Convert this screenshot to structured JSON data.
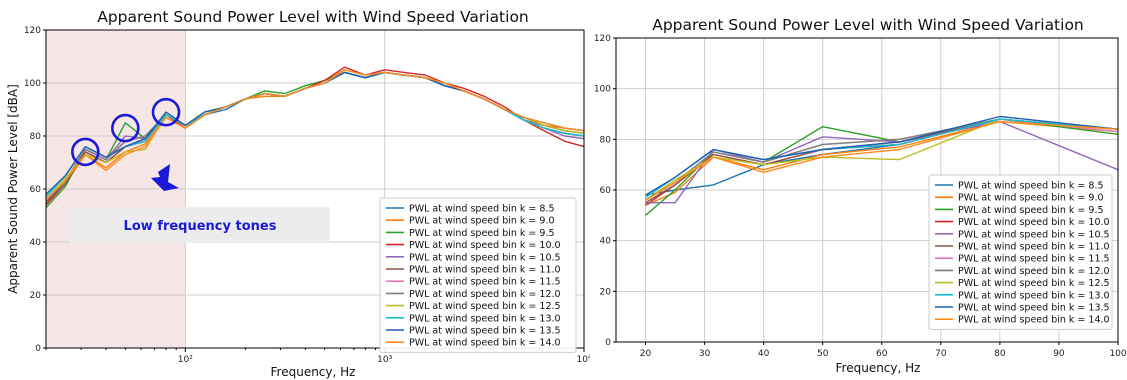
{
  "colors": {
    "highlight_band": "#f6e6e6",
    "annotation_box": "#ececec",
    "annotation": "#1a1ad8",
    "grid": "#cfcfcf"
  },
  "chart_data": [
    {
      "type": "line",
      "title": "Apparent Sound Power Level with Wind Speed Variation",
      "xlabel": "Frequency, Hz",
      "ylabel": "Apparent Sound Power Level [dBA]",
      "xscale": "log",
      "xlim": [
        20,
        10000
      ],
      "ylim": [
        0,
        120
      ],
      "yticks": [
        "0",
        "20",
        "40",
        "60",
        "80",
        "100",
        "120"
      ],
      "xtick_labels": [
        "10²",
        "10³",
        "10⁴"
      ],
      "grid": true,
      "legend_position": "lower-right",
      "highlight_band": [
        20,
        100
      ],
      "annotation": "Low frequency tones",
      "x": [
        20,
        25,
        31.5,
        40,
        50,
        63,
        80,
        100,
        125,
        160,
        200,
        250,
        315,
        400,
        500,
        630,
        800,
        1000,
        1250,
        1600,
        2000,
        2500,
        3150,
        4000,
        5000,
        6300,
        8000,
        10000
      ],
      "series": [
        {
          "name": "PWL at wind speed bin k = 8.5",
          "color": "#1f77b4",
          "values": [
            55,
            63,
            75,
            71,
            78,
            80,
            88,
            84,
            88,
            90,
            94,
            96,
            95,
            98,
            100,
            104,
            102,
            104,
            103,
            102,
            99,
            97,
            94,
            90,
            86,
            83,
            81,
            80
          ]
        },
        {
          "name": "PWL at wind speed bin k = 9.0",
          "color": "#ff7f0e",
          "values": [
            54,
            62,
            73,
            68,
            74,
            77,
            87,
            83,
            88,
            91,
            94,
            95,
            95,
            98,
            101,
            105,
            103,
            104,
            103,
            102,
            100,
            97,
            94,
            90,
            87,
            84,
            83,
            82
          ]
        },
        {
          "name": "PWL at wind speed bin k = 9.5",
          "color": "#2ca02c",
          "values": [
            53,
            61,
            75,
            71,
            85,
            79,
            88,
            84,
            89,
            91,
            94,
            97,
            96,
            99,
            101,
            104,
            102,
            104,
            103,
            102,
            99,
            97,
            94,
            90,
            86,
            83,
            81,
            80
          ]
        },
        {
          "name": "PWL at wind speed bin k = 10.0",
          "color": "#d62728",
          "values": [
            54,
            62,
            74,
            70,
            76,
            78,
            88,
            83,
            88,
            91,
            94,
            96,
            95,
            98,
            101,
            106,
            103,
            105,
            104,
            103,
            100,
            98,
            95,
            91,
            86,
            82,
            78,
            76
          ]
        },
        {
          "name": "PWL at wind speed bin k = 10.5",
          "color": "#9467bd",
          "values": [
            55,
            62,
            75,
            71,
            80,
            79,
            88,
            84,
            88,
            91,
            94,
            96,
            95,
            98,
            100,
            104,
            102,
            104,
            103,
            102,
            99,
            97,
            94,
            90,
            86,
            83,
            80,
            79
          ]
        },
        {
          "name": "PWL at wind speed bin k = 11.0",
          "color": "#8c564b",
          "values": [
            55,
            62,
            74,
            70,
            76,
            79,
            88,
            84,
            88,
            91,
            94,
            96,
            95,
            98,
            100,
            104,
            102,
            104,
            103,
            102,
            99,
            97,
            94,
            90,
            86,
            84,
            82,
            81
          ]
        },
        {
          "name": "PWL at wind speed bin k = 11.5",
          "color": "#e377c2",
          "values": [
            56,
            63,
            75,
            71,
            78,
            80,
            88,
            84,
            88,
            91,
            94,
            96,
            95,
            98,
            100,
            104,
            102,
            104,
            103,
            102,
            99,
            97,
            94,
            90,
            86,
            83,
            81,
            80
          ]
        },
        {
          "name": "PWL at wind speed bin k = 12.0",
          "color": "#7f7f7f",
          "values": [
            56,
            63,
            75,
            71,
            78,
            80,
            88,
            84,
            88,
            91,
            94,
            96,
            95,
            98,
            100,
            104,
            102,
            104,
            103,
            102,
            99,
            97,
            94,
            90,
            86,
            84,
            82,
            81
          ]
        },
        {
          "name": "PWL at wind speed bin k = 12.5",
          "color": "#bcbd22",
          "values": [
            56,
            64,
            73,
            70,
            74,
            75,
            88,
            84,
            88,
            91,
            94,
            96,
            95,
            98,
            100,
            104,
            102,
            104,
            103,
            102,
            99,
            97,
            94,
            90,
            87,
            84,
            82,
            81
          ]
        },
        {
          "name": "PWL at wind speed bin k = 13.0",
          "color": "#17becf",
          "values": [
            57,
            65,
            76,
            72,
            76,
            78,
            88,
            84,
            88,
            91,
            94,
            96,
            95,
            98,
            100,
            104,
            102,
            104,
            103,
            102,
            99,
            97,
            94,
            90,
            86,
            83,
            81,
            80
          ]
        },
        {
          "name": "PWL at wind speed bin k = 13.5",
          "color": "#1f5fb4",
          "values": [
            58,
            65,
            76,
            72,
            76,
            79,
            89,
            84,
            89,
            91,
            94,
            96,
            95,
            98,
            100,
            104,
            102,
            104,
            103,
            102,
            99,
            97,
            94,
            90,
            87,
            85,
            83,
            82
          ]
        },
        {
          "name": "PWL at wind speed bin k = 14.0",
          "color": "#ff8c1a",
          "values": [
            56,
            63,
            73,
            67,
            73,
            76,
            87,
            83,
            88,
            91,
            94,
            96,
            95,
            98,
            100,
            105,
            103,
            104,
            103,
            102,
            100,
            97,
            94,
            90,
            87,
            85,
            83,
            82
          ]
        }
      ]
    },
    {
      "type": "line",
      "title": "Apparent Sound Power Level with Wind Speed Variation",
      "xlabel": "Frequency, Hz",
      "ylabel": "",
      "xlim": [
        15,
        100
      ],
      "ylim": [
        0,
        120
      ],
      "xticks": [
        "20",
        "30",
        "40",
        "50",
        "60",
        "70",
        "80",
        "90",
        "100"
      ],
      "yticks": [
        "0",
        "20",
        "40",
        "60",
        "80",
        "100",
        "120"
      ],
      "grid": true,
      "legend_position": "lower-right",
      "x": [
        20,
        25,
        31.5,
        40,
        50,
        63,
        80,
        100
      ],
      "series": [
        {
          "name": "PWL at wind speed bin k = 8.5",
          "color": "#1f77b4",
          "values": [
            58,
            60,
            62,
            70,
            74,
            78,
            88,
            84
          ]
        },
        {
          "name": "PWL at wind speed bin k = 9.0",
          "color": "#ff7f0e",
          "values": [
            54,
            59,
            73,
            68,
            74,
            77,
            87,
            83
          ]
        },
        {
          "name": "PWL at wind speed bin k = 9.5",
          "color": "#2ca02c",
          "values": [
            50,
            60,
            75,
            71,
            85,
            79,
            88,
            82
          ]
        },
        {
          "name": "PWL at wind speed bin k = 10.0",
          "color": "#d62728",
          "values": [
            54,
            62,
            74,
            70,
            76,
            78,
            88,
            84
          ]
        },
        {
          "name": "PWL at wind speed bin k = 10.5",
          "color": "#9467bd",
          "values": [
            55,
            55,
            76,
            71,
            81,
            79,
            87,
            68
          ]
        },
        {
          "name": "PWL at wind speed bin k = 11.0",
          "color": "#8c564b",
          "values": [
            55,
            62,
            74,
            70,
            76,
            79,
            88,
            84
          ]
        },
        {
          "name": "PWL at wind speed bin k = 11.5",
          "color": "#e377c2",
          "values": [
            56,
            63,
            75,
            71,
            78,
            80,
            88,
            83
          ]
        },
        {
          "name": "PWL at wind speed bin k = 12.0",
          "color": "#7f7f7f",
          "values": [
            56,
            63,
            75,
            71,
            78,
            80,
            88,
            84
          ]
        },
        {
          "name": "PWL at wind speed bin k = 12.5",
          "color": "#bcbd22",
          "values": [
            56,
            64,
            73,
            70,
            73,
            72,
            88,
            84
          ]
        },
        {
          "name": "PWL at wind speed bin k = 13.0",
          "color": "#17becf",
          "values": [
            57,
            65,
            76,
            72,
            76,
            78,
            88,
            84
          ]
        },
        {
          "name": "PWL at wind speed bin k = 13.5",
          "color": "#1f5fb4",
          "values": [
            58,
            65,
            76,
            72,
            76,
            79,
            89,
            84
          ]
        },
        {
          "name": "PWL at wind speed bin k = 14.0",
          "color": "#ff8c1a",
          "values": [
            56,
            63,
            73,
            67,
            73,
            76,
            87,
            84
          ]
        }
      ]
    }
  ]
}
